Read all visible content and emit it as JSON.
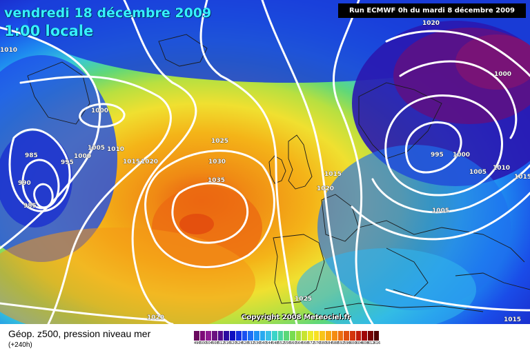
{
  "title": {
    "line1": "vendredi 18 décembre 2009",
    "line2": "1:00 locale"
  },
  "run_info": "Run ECMWF 0h du mardi 8 décembre 2009",
  "copyright": "Copyright 2008 Meteociel.fr",
  "footer": {
    "caption": "Géop. z500, pression niveau mer",
    "lead": "(+240h)"
  },
  "pressure_labels": [
    "1020",
    "1000",
    "1000",
    "985",
    "1005",
    "1010",
    "995",
    "1000",
    "1015",
    "1020",
    "990",
    "985",
    "1025",
    "1030",
    "1035",
    "1015",
    "1020",
    "995",
    "1000",
    "1005",
    "1010",
    "1015",
    "1005",
    "1025",
    "1020",
    "1015",
    "1010"
  ],
  "scale": {
    "labels": [
      "496",
      "500",
      "504",
      "508",
      "512",
      "516",
      "520",
      "524",
      "528",
      "532",
      "536",
      "540",
      "544",
      "548",
      "552",
      "556",
      "560",
      "564",
      "568",
      "572",
      "576",
      "580",
      "584",
      "588",
      "592",
      "596",
      "600",
      "604",
      "608",
      "612",
      "616"
    ],
    "colors": [
      "#6a0a5e",
      "#7d0a78",
      "#8f1a92",
      "#6a1280",
      "#520a8c",
      "#2a0aa0",
      "#1010c0",
      "#1430e0",
      "#1a50f0",
      "#1e70f5",
      "#1e90f5",
      "#28aaf0",
      "#38c0e8",
      "#3ad4c8",
      "#4ad6a0",
      "#5ad878",
      "#78dc50",
      "#a0e03c",
      "#c8e430",
      "#ecec28",
      "#f8e020",
      "#f8c418",
      "#f8a814",
      "#f48c12",
      "#ec6e10",
      "#e0500e",
      "#d4340c",
      "#c01c0a",
      "#a00808",
      "#780404",
      "#500000"
    ]
  },
  "map_colors": {
    "outer_blue": "#2030d8",
    "deep_purple": "#6a1a7a",
    "orange_high": "#f08a14",
    "yellow": "#f0ec3c",
    "isobar": "#ffffff"
  }
}
